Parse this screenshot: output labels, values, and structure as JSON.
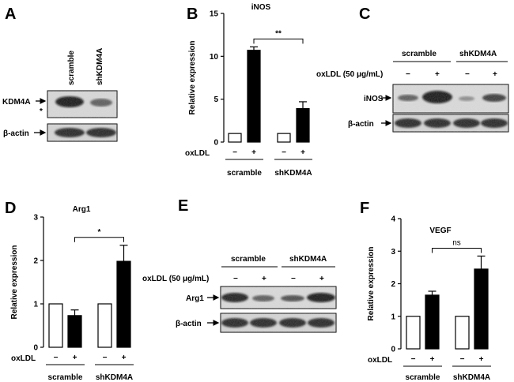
{
  "panels": {
    "A": {
      "letter": "A",
      "lanes": [
        "scramble",
        "shKDM4A"
      ],
      "rows": [
        "KDM4A",
        "β-actin"
      ],
      "nonspecific_mark": "*"
    },
    "C": {
      "letter": "C",
      "groups": [
        "scramble",
        "shKDM4A"
      ],
      "treatment_label": "oxLDL (50 μg/mL)",
      "signs": [
        "−",
        "+",
        "−",
        "+"
      ],
      "rows": [
        "iNOS",
        "β-actin"
      ]
    },
    "E": {
      "letter": "E",
      "groups": [
        "scramble",
        "shKDM4A"
      ],
      "treatment_label": "oxLDL (50 μg/mL)",
      "signs": [
        "−",
        "+",
        "−",
        "+"
      ],
      "rows": [
        "Arg1",
        "β-actin"
      ]
    }
  },
  "chart_data": [
    {
      "type": "bar",
      "panel": "B",
      "title": "iNOS",
      "ylabel": "Relative expression",
      "ylim": [
        0,
        15
      ],
      "yticks": [
        0,
        5,
        10,
        15
      ],
      "row_label": "oxLDL",
      "signs": [
        "−",
        "+",
        "−",
        "+"
      ],
      "groups": [
        "scramble",
        "shKDM4A"
      ],
      "values": [
        1,
        10.7,
        1,
        3.9
      ],
      "errors": [
        0,
        0.4,
        0,
        0.8
      ],
      "fills": [
        "#ffffff",
        "#000000",
        "#ffffff",
        "#000000"
      ],
      "significance": {
        "label": "**",
        "between": [
          1,
          3
        ]
      }
    },
    {
      "type": "bar",
      "panel": "D",
      "title": "Arg1",
      "ylabel": "Relative expression",
      "ylim": [
        0,
        3
      ],
      "yticks": [
        0,
        1,
        2,
        3
      ],
      "row_label": "oxLDL",
      "signs": [
        "−",
        "+",
        "−",
        "+"
      ],
      "groups": [
        "scramble",
        "shKDM4A"
      ],
      "values": [
        1,
        0.73,
        1,
        1.98
      ],
      "errors": [
        0,
        0.13,
        0,
        0.37
      ],
      "fills": [
        "#ffffff",
        "#000000",
        "#ffffff",
        "#000000"
      ],
      "significance": {
        "label": "*",
        "between": [
          1,
          3
        ]
      }
    },
    {
      "type": "bar",
      "panel": "F",
      "title": "VEGF",
      "ylabel": "Relative expression",
      "ylim": [
        0,
        4
      ],
      "yticks": [
        0,
        1,
        2,
        3,
        4
      ],
      "row_label": "oxLDL",
      "signs": [
        "−",
        "+",
        "−",
        "+"
      ],
      "groups": [
        "scramble",
        "shKDM4A"
      ],
      "values": [
        1,
        1.65,
        1,
        2.45
      ],
      "errors": [
        0,
        0.12,
        0,
        0.4
      ],
      "fills": [
        "#ffffff",
        "#000000",
        "#ffffff",
        "#000000"
      ],
      "significance": {
        "label": "ns",
        "between": [
          1,
          3
        ]
      }
    }
  ]
}
